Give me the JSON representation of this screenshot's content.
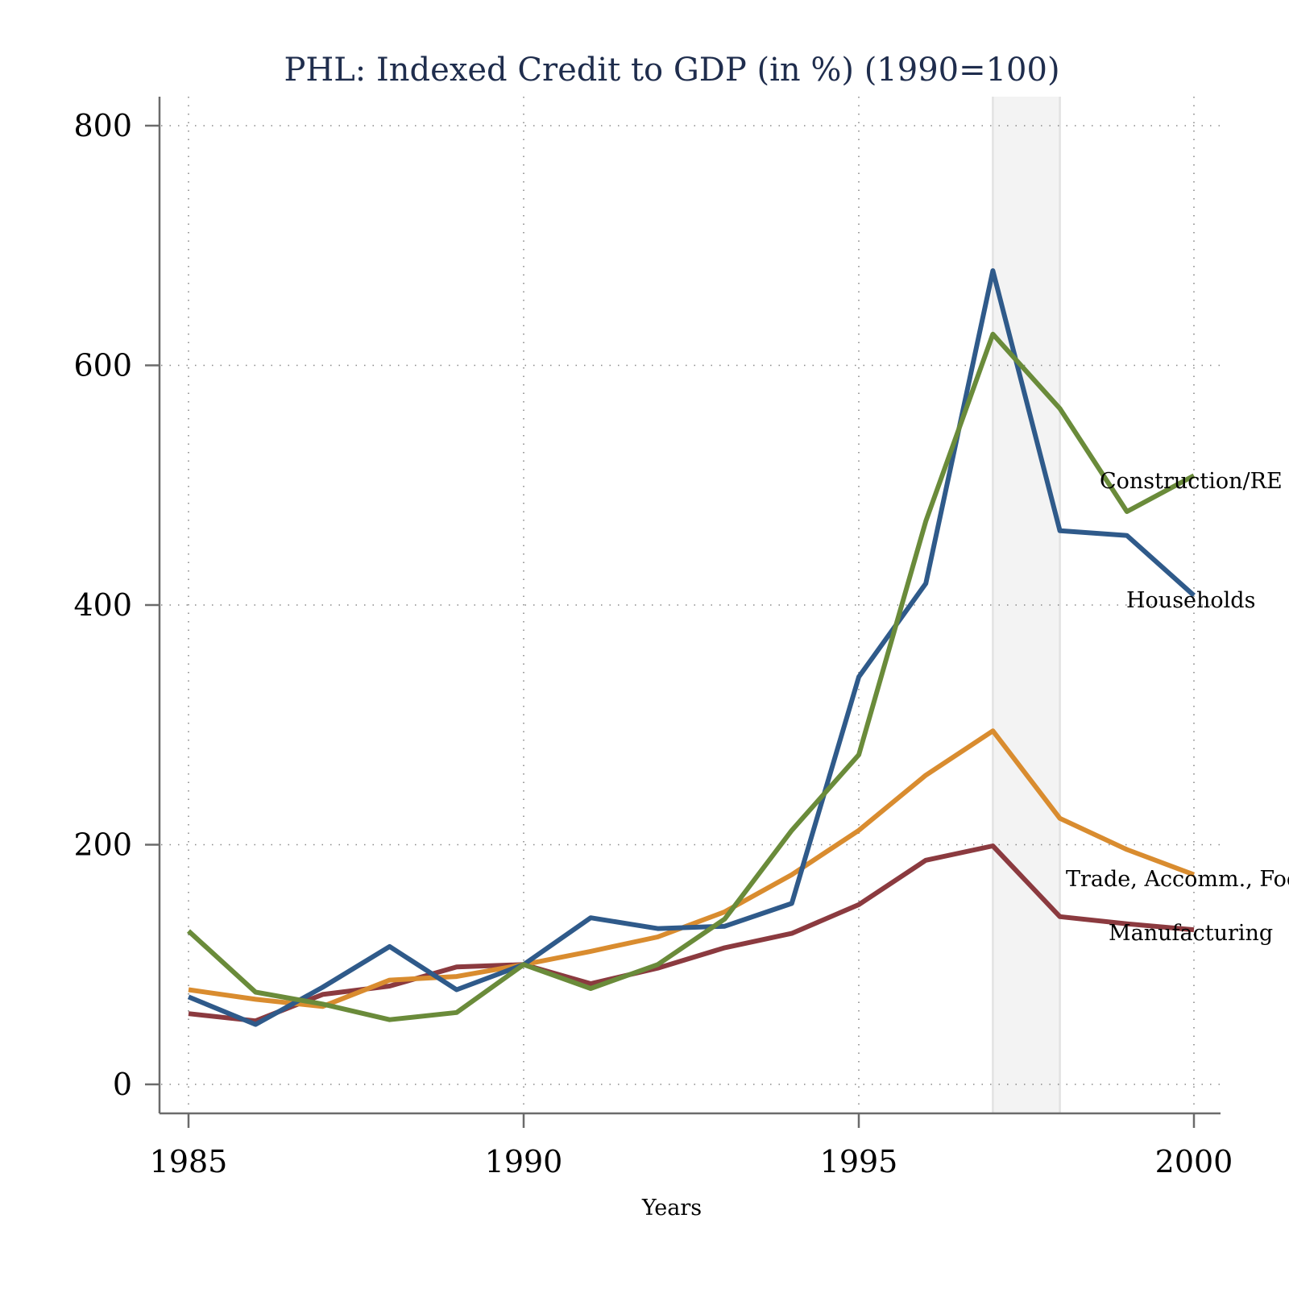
{
  "chart_data": {
    "type": "line",
    "title": "PHL: Indexed Credit to GDP (in %) (1990=100)",
    "xlabel": "Years",
    "ylabel": "",
    "xlim": [
      1985,
      2000
    ],
    "ylim": [
      0,
      800
    ],
    "x_ticks": [
      1985,
      1990,
      1995,
      2000
    ],
    "x_tick_labels": [
      "1985",
      "1990",
      "1995",
      "2000"
    ],
    "y_ticks": [
      0,
      200,
      400,
      600,
      800
    ],
    "y_tick_labels": [
      "0",
      "200",
      "400",
      "600",
      "800"
    ],
    "grid": true,
    "shaded_region": {
      "x_start": 1997,
      "x_end": 1998,
      "color": "#f3f3f3"
    },
    "x": [
      1985,
      1986,
      1987,
      1988,
      1989,
      1990,
      1991,
      1992,
      1993,
      1994,
      1995,
      1996,
      1997,
      1998,
      1999,
      2000
    ],
    "series": [
      {
        "name": "Construction/RE",
        "color": "#6a8b3a",
        "values": [
          128,
          77,
          67,
          54,
          60,
          100,
          80,
          100,
          138,
          212,
          275,
          470,
          626,
          564,
          478,
          508
        ]
      },
      {
        "name": "Households",
        "color": "#2f5a8a",
        "values": [
          73,
          50,
          81,
          115,
          79,
          100,
          139,
          130,
          132,
          151,
          340,
          418,
          679,
          462,
          458,
          408
        ]
      },
      {
        "name": "Trade, Accomm., Food",
        "color": "#d98c2f",
        "values": [
          79,
          71,
          65,
          87,
          90,
          100,
          111,
          123,
          144,
          175,
          212,
          258,
          295,
          222,
          196,
          175
        ]
      },
      {
        "name": "Manufacturing",
        "color": "#8b3a3f",
        "values": [
          59,
          53,
          75,
          82,
          98,
          100,
          84,
          97,
          114,
          126,
          150,
          187,
          199,
          140,
          134,
          129
        ]
      }
    ]
  }
}
